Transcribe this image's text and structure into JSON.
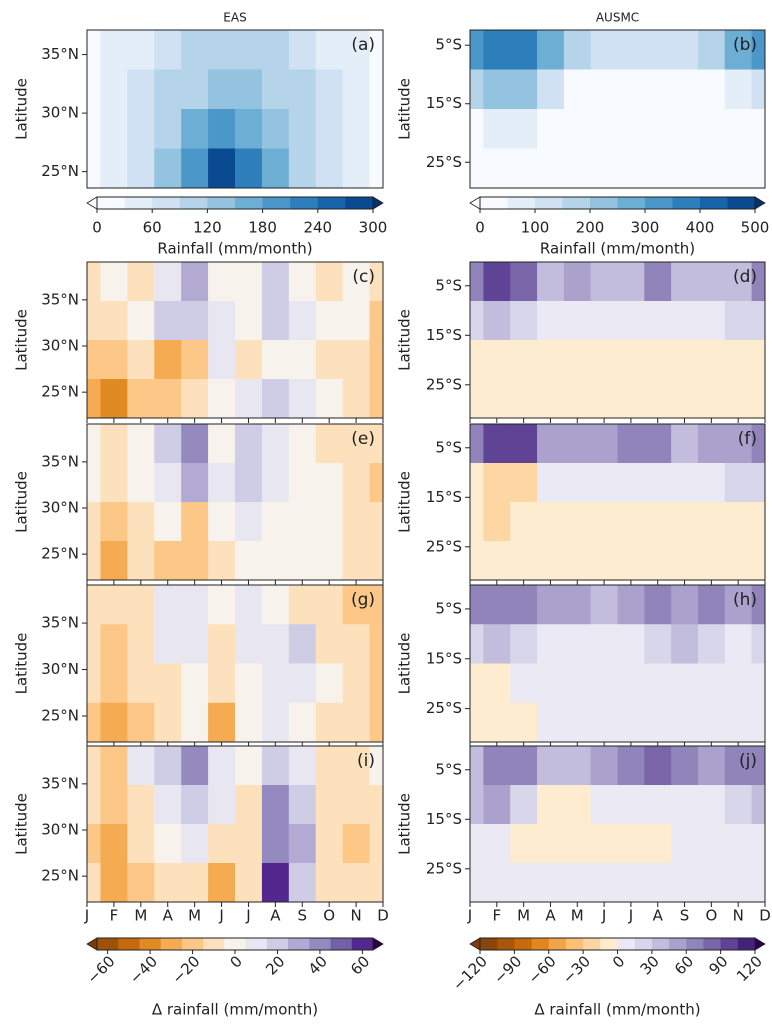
{
  "chart_data": [
    {
      "type": "contour",
      "title": "EAS",
      "ylabel": "Latitude",
      "colorbar": {
        "label": "Rainfall (mm/month)",
        "clim": [
          0,
          300
        ],
        "ticks": [
          0,
          60,
          120,
          180,
          240,
          300
        ],
        "colors": [
          "#f7fbff",
          "#e3eef9",
          "#cfe1f2",
          "#b5d4e9",
          "#93c3df",
          "#6daed5",
          "#4b97c9",
          "#2f7ebc",
          "#1864aa",
          "#0a4a90"
        ],
        "under": "#ffffff",
        "over": "#08306b"
      },
      "panels": [
        {
          "label": "(a)",
          "ylim": [
            23.6,
            37.1
          ],
          "yticks": [
            {
              "value": 25,
              "label": "25°N"
            },
            {
              "value": 30,
              "label": "30°N"
            },
            {
              "value": 35,
              "label": "35°N"
            }
          ],
          "z": [
            [
              20,
              30,
              50,
              70,
              90,
              110,
              110,
              100,
              80,
              50,
              30,
              20
            ],
            [
              20,
              40,
              60,
              90,
              110,
              130,
              120,
              110,
              90,
              60,
              30,
              20
            ],
            [
              20,
              40,
              70,
              110,
              150,
              190,
              170,
              140,
              100,
              60,
              30,
              20
            ],
            [
              20,
              40,
              70,
              120,
              180,
              280,
              230,
              160,
              110,
              60,
              30,
              15
            ]
          ]
        }
      ]
    },
    {
      "type": "contour",
      "title": "AUSMC",
      "ylabel": "Latitude",
      "colorbar": {
        "label": "Rainfall (mm/month)",
        "clim": [
          0,
          500
        ],
        "ticks": [
          0,
          100,
          200,
          300,
          400,
          500
        ],
        "colors": [
          "#f7fbff",
          "#e3eef9",
          "#cfe1f2",
          "#b5d4e9",
          "#93c3df",
          "#6daed5",
          "#4b97c9",
          "#2f7ebc",
          "#1864aa",
          "#0a4a90"
        ],
        "under": "#ffffff",
        "over": "#08306b"
      },
      "panels": [
        {
          "label": "(b)",
          "ylim": [
            -29.4,
            -2.4
          ],
          "yticks": [
            {
              "value": -5,
              "label": "5°S"
            },
            {
              "value": -15,
              "label": "15°S"
            },
            {
              "value": -25,
              "label": "25°S"
            }
          ],
          "z": [
            [
              300,
              380,
              350,
              250,
              150,
              100,
              100,
              100,
              120,
              180,
              260,
              300
            ],
            [
              150,
              220,
              200,
              100,
              40,
              20,
              10,
              10,
              10,
              20,
              60,
              120
            ],
            [
              40,
              60,
              50,
              20,
              10,
              5,
              5,
              5,
              5,
              5,
              10,
              20
            ],
            [
              5,
              5,
              5,
              5,
              5,
              5,
              5,
              5,
              5,
              5,
              5,
              5
            ]
          ]
        }
      ]
    },
    {
      "type": "contour",
      "ylabel": "Latitude",
      "categories": [
        "J",
        "F",
        "M",
        "A",
        "M",
        "J",
        "J",
        "A",
        "S",
        "O",
        "N",
        "D"
      ],
      "colorbar": {
        "label": "Δ rainfall (mm/month)",
        "clim": [
          -65,
          65
        ],
        "ticks": [
          {
            "value": -60,
            "label": "−60"
          },
          {
            "value": -40,
            "label": "−40"
          },
          {
            "value": -20,
            "label": "−20"
          },
          0,
          20,
          40,
          60
        ],
        "colors": [
          "#9c5208",
          "#c46a0d",
          "#e08a23",
          "#f4ab52",
          "#fdc887",
          "#fde1bc",
          "#f7f3ec",
          "#e8e7f1",
          "#cfcce5",
          "#b2aad3",
          "#948abf",
          "#7460a7",
          "#54278f"
        ],
        "under": "#7f3b08",
        "over": "#2d004b"
      },
      "panels": [
        {
          "label": "(c)",
          "ylim": [
            22.2,
            39.1
          ],
          "yticks": [
            {
              "value": 25,
              "label": "25°N"
            },
            {
              "value": 30,
              "label": "30°N"
            },
            {
              "value": 35,
              "label": "35°N"
            }
          ],
          "z": [
            [
              -15,
              -5,
              -10,
              10,
              25,
              0,
              -5,
              20,
              0,
              -10,
              -5,
              -15
            ],
            [
              -10,
              -15,
              -5,
              15,
              20,
              5,
              -5,
              15,
              10,
              -5,
              -5,
              -20
            ],
            [
              -20,
              -25,
              -10,
              -30,
              -20,
              5,
              -10,
              0,
              -5,
              -15,
              -10,
              -20
            ],
            [
              -30,
              -40,
              -20,
              -25,
              -10,
              0,
              10,
              15,
              5,
              0,
              -10,
              -20
            ]
          ]
        },
        {
          "label": "(e)",
          "ylim": [
            22.2,
            39.1
          ],
          "yticks": [
            {
              "value": 25,
              "label": "25°N"
            },
            {
              "value": 30,
              "label": "30°N"
            },
            {
              "value": 35,
              "label": "35°N"
            }
          ],
          "z": [
            [
              0,
              -10,
              0,
              15,
              40,
              0,
              20,
              10,
              -5,
              -10,
              -10,
              -15
            ],
            [
              -5,
              -15,
              0,
              10,
              25,
              5,
              20,
              5,
              0,
              -5,
              -10,
              -20
            ],
            [
              -10,
              -20,
              -10,
              -5,
              -20,
              -5,
              5,
              0,
              0,
              -5,
              -10,
              -15
            ],
            [
              -15,
              -30,
              -15,
              -20,
              -25,
              -10,
              0,
              0,
              0,
              -5,
              -10,
              -15
            ]
          ]
        },
        {
          "label": "(g)",
          "ylim": [
            22.2,
            39.1
          ],
          "yticks": [
            {
              "value": 25,
              "label": "25°N"
            },
            {
              "value": 30,
              "label": "30°N"
            },
            {
              "value": 35,
              "label": "35°N"
            }
          ],
          "z": [
            [
              -10,
              -15,
              -10,
              5,
              5,
              -5,
              10,
              -5,
              -10,
              -15,
              -20,
              -20
            ],
            [
              -15,
              -20,
              -10,
              10,
              10,
              -10,
              5,
              10,
              15,
              -10,
              -15,
              -20
            ],
            [
              -15,
              -25,
              -10,
              -10,
              -5,
              -15,
              -5,
              5,
              10,
              -5,
              -15,
              -20
            ],
            [
              -20,
              -30,
              -25,
              -15,
              -5,
              -30,
              -5,
              10,
              0,
              -10,
              -15,
              -20
            ]
          ]
        },
        {
          "label": "(i)",
          "ylim": [
            22.2,
            39.1
          ],
          "yticks": [
            {
              "value": 25,
              "label": "25°N"
            },
            {
              "value": 30,
              "label": "30°N"
            },
            {
              "value": 35,
              "label": "35°N"
            }
          ],
          "z": [
            [
              -10,
              -20,
              10,
              15,
              35,
              10,
              -5,
              20,
              10,
              -10,
              -10,
              -5
            ],
            [
              -15,
              -25,
              -10,
              5,
              20,
              5,
              -10,
              35,
              20,
              -15,
              -15,
              -10
            ],
            [
              -20,
              -30,
              -15,
              -5,
              10,
              -10,
              -10,
              40,
              30,
              -15,
              -20,
              -15
            ],
            [
              -15,
              -35,
              -20,
              -15,
              -10,
              -35,
              -10,
              60,
              20,
              -10,
              -10,
              -10
            ]
          ]
        }
      ]
    },
    {
      "type": "contour",
      "ylabel": "Latitude",
      "categories": [
        "J",
        "F",
        "M",
        "A",
        "M",
        "J",
        "J",
        "A",
        "S",
        "O",
        "N",
        "D"
      ],
      "colorbar": {
        "label": "Δ rainfall (mm/month)",
        "clim": [
          -120,
          120
        ],
        "ticks": [
          {
            "value": -120,
            "label": "−120"
          },
          {
            "value": -90,
            "label": "−90"
          },
          {
            "value": -60,
            "label": "−60"
          },
          {
            "value": -30,
            "label": "−30"
          },
          0,
          30,
          60,
          90,
          120
        ],
        "colors": [
          "#8a4508",
          "#a85609",
          "#c66a0c",
          "#e0871f",
          "#f0a446",
          "#fbbf75",
          "#fdd6a3",
          "#fdeccf",
          "#ebe9f3",
          "#d8d6ea",
          "#c2bddd",
          "#aaa2cd",
          "#9184bb",
          "#7965a8",
          "#5f4394",
          "#47217e"
        ],
        "under": "#7f3b08",
        "over": "#2d004b"
      },
      "panels": [
        {
          "label": "(d)",
          "ylim": [
            -31.7,
            -0.2
          ],
          "yticks": [
            {
              "value": -5,
              "label": "5°S"
            },
            {
              "value": -15,
              "label": "15°S"
            },
            {
              "value": -25,
              "label": "25°S"
            }
          ],
          "z": [
            [
              60,
              90,
              80,
              40,
              50,
              40,
              40,
              60,
              40,
              40,
              40,
              60
            ],
            [
              20,
              30,
              20,
              10,
              10,
              10,
              10,
              10,
              10,
              10,
              20,
              20
            ],
            [
              -5,
              -10,
              -10,
              -10,
              -10,
              -10,
              -10,
              -10,
              -10,
              -10,
              -5,
              -5
            ],
            [
              -5,
              -10,
              -10,
              -10,
              -10,
              -10,
              -10,
              -10,
              -10,
              -5,
              -5,
              -5
            ]
          ]
        },
        {
          "label": "(f)",
          "ylim": [
            -31.7,
            -0.2
          ],
          "yticks": [
            {
              "value": -5,
              "label": "5°S"
            },
            {
              "value": -15,
              "label": "15°S"
            },
            {
              "value": -25,
              "label": "25°S"
            }
          ],
          "z": [
            [
              70,
              100,
              100,
              50,
              50,
              50,
              60,
              60,
              40,
              50,
              50,
              60
            ],
            [
              -10,
              -30,
              -20,
              0,
              10,
              5,
              10,
              10,
              5,
              5,
              20,
              20
            ],
            [
              -15,
              -25,
              -15,
              -10,
              -10,
              -10,
              -10,
              -10,
              -10,
              -10,
              -5,
              -5
            ],
            [
              -10,
              -10,
              -10,
              -10,
              -10,
              -10,
              -10,
              -10,
              -10,
              -5,
              -5,
              -5
            ]
          ]
        },
        {
          "label": "(h)",
          "ylim": [
            -31.7,
            -0.2
          ],
          "yticks": [
            {
              "value": -5,
              "label": "5°S"
            },
            {
              "value": -15,
              "label": "15°S"
            },
            {
              "value": -25,
              "label": "25°S"
            }
          ],
          "z": [
            [
              60,
              70,
              60,
              50,
              50,
              40,
              50,
              60,
              50,
              60,
              50,
              60
            ],
            [
              20,
              30,
              20,
              10,
              10,
              10,
              10,
              20,
              30,
              20,
              10,
              20
            ],
            [
              -5,
              -5,
              0,
              0,
              0,
              0,
              0,
              0,
              0,
              0,
              0,
              0
            ],
            [
              -5,
              -10,
              -5,
              0,
              0,
              0,
              0,
              0,
              0,
              0,
              0,
              0
            ]
          ]
        },
        {
          "label": "(j)",
          "ylim": [
            -31.7,
            -0.2
          ],
          "yticks": [
            {
              "value": -5,
              "label": "5°S"
            },
            {
              "value": -15,
              "label": "15°S"
            },
            {
              "value": -25,
              "label": "25°S"
            }
          ],
          "z": [
            [
              40,
              60,
              70,
              40,
              40,
              50,
              60,
              80,
              60,
              50,
              60,
              70
            ],
            [
              40,
              50,
              20,
              -5,
              -10,
              10,
              10,
              10,
              10,
              10,
              20,
              30
            ],
            [
              10,
              10,
              -5,
              -5,
              -5,
              -5,
              -5,
              -5,
              5,
              5,
              5,
              5
            ],
            [
              5,
              5,
              5,
              5,
              5,
              5,
              5,
              5,
              5,
              5,
              5,
              5
            ]
          ]
        }
      ]
    }
  ]
}
